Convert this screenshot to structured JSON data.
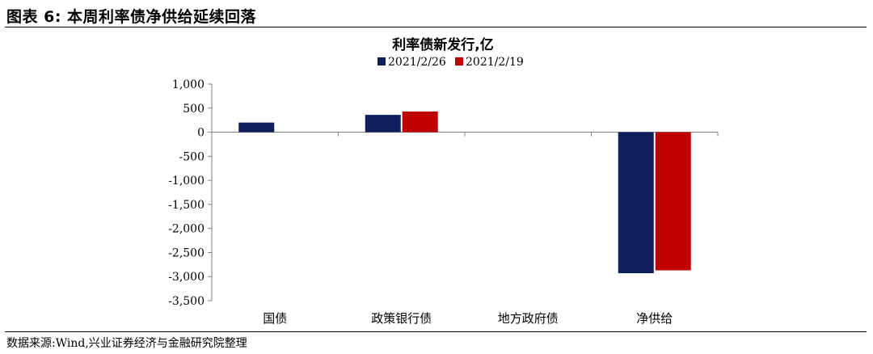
{
  "figure": {
    "title": "图表 6:  本周利率债净供给延续回落",
    "source": "数据来源:Wind,兴业证券经济与金融研究院整理"
  },
  "chart_data": {
    "type": "bar",
    "title": "利率债新发行,亿",
    "categories": [
      "国债",
      "政策银行债",
      "地方政府债",
      "净供给"
    ],
    "series": [
      {
        "name": "2021/2/26",
        "color": "#0d1f5c",
        "values": [
          200,
          360,
          0,
          -2930
        ]
      },
      {
        "name": "2021/2/19",
        "color": "#c00000",
        "values": [
          null,
          430,
          0,
          -2870
        ]
      }
    ],
    "ylim": [
      -3500,
      1000
    ],
    "yticks": [
      1000,
      500,
      0,
      -500,
      -1000,
      -1500,
      -2000,
      -2500,
      -3000,
      -3500
    ],
    "ytick_labels": [
      "1,000",
      "500",
      "0",
      "-500",
      "-1,000",
      "-1,500",
      "-2,000",
      "-2,500",
      "-3,000",
      "-3,500"
    ],
    "legend_position": "top-center",
    "grid": false
  }
}
